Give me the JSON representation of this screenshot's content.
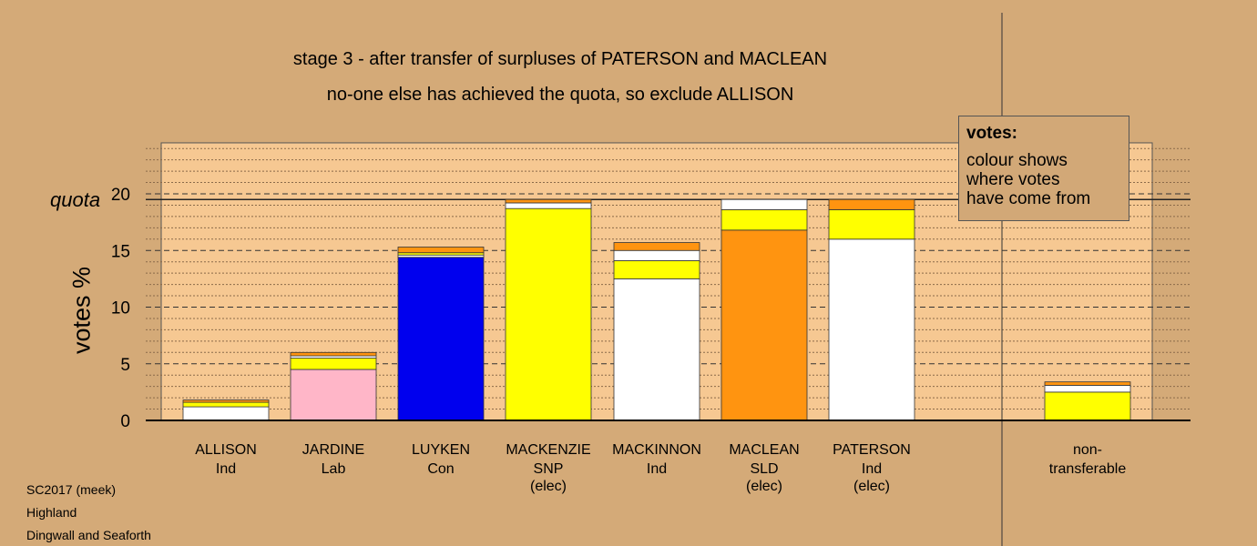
{
  "titles": {
    "line1": "stage 3 - after transfer of surpluses of PATERSON and MACLEAN",
    "line2": "no-one else has achieved the quota, so exclude ALLISON"
  },
  "legend": {
    "title": "votes:",
    "lines": [
      "colour shows",
      "where votes",
      "have come from"
    ]
  },
  "footer": {
    "line1": "SC2017 (meek)",
    "line2": "Highland",
    "line3": "Dingwall and Seaforth"
  },
  "colors": {
    "background": "#d4aa78",
    "plot_background": "#f6c892",
    "Ind": "#ffffff",
    "Lab": "#ffb6c8",
    "Con": "#0000ee",
    "SNP": "#ffff00",
    "SLD": "#ff9410"
  },
  "chart_data": {
    "type": "bar",
    "stacked": true,
    "ylabel": "votes %",
    "quota_label": "quota",
    "quota": 19.5,
    "ylim": [
      0,
      24.5
    ],
    "yticks": [
      0,
      5,
      10,
      15,
      20
    ],
    "grid": true,
    "legend_position": "top-right",
    "categories": [
      {
        "name": "ALLISON",
        "party": "Ind",
        "note": "",
        "segments": [
          {
            "color": "#ffffff",
            "value": 1.2
          },
          {
            "color": "#ffff00",
            "value": 0.4
          },
          {
            "color": "#ff9410",
            "value": 0.2
          }
        ]
      },
      {
        "name": "JARDINE",
        "party": "Lab",
        "note": "",
        "segments": [
          {
            "color": "#ffb6c8",
            "value": 4.5
          },
          {
            "color": "#ffff00",
            "value": 1.0
          },
          {
            "color": "#ffffff",
            "value": 0.2
          },
          {
            "color": "#ff9410",
            "value": 0.3
          }
        ]
      },
      {
        "name": "LUYKEN",
        "party": "Con",
        "note": "",
        "segments": [
          {
            "color": "#0000ee",
            "value": 14.4
          },
          {
            "color": "#ffffff",
            "value": 0.2
          },
          {
            "color": "#ffff00",
            "value": 0.2
          },
          {
            "color": "#ff9410",
            "value": 0.5
          }
        ]
      },
      {
        "name": "MACKENZIE",
        "party": "SNP",
        "note": "(elec)",
        "segments": [
          {
            "color": "#ffff00",
            "value": 18.7
          },
          {
            "color": "#ffffff",
            "value": 0.5
          },
          {
            "color": "#ff9410",
            "value": 0.3
          }
        ]
      },
      {
        "name": "MACKINNON",
        "party": "Ind",
        "note": "",
        "segments": [
          {
            "color": "#ffffff",
            "value": 12.5
          },
          {
            "color": "#ffff00",
            "value": 1.6
          },
          {
            "color": "#ffffff",
            "value": 0.9
          },
          {
            "color": "#ff9410",
            "value": 0.7
          }
        ]
      },
      {
        "name": "MACLEAN",
        "party": "SLD",
        "note": "(elec)",
        "segments": [
          {
            "color": "#ff9410",
            "value": 16.8
          },
          {
            "color": "#ffff00",
            "value": 1.8
          },
          {
            "color": "#ffffff",
            "value": 0.9
          }
        ]
      },
      {
        "name": "PATERSON",
        "party": "Ind",
        "note": "(elec)",
        "segments": [
          {
            "color": "#ffffff",
            "value": 16.0
          },
          {
            "color": "#ffff00",
            "value": 2.6
          },
          {
            "color": "#ff9410",
            "value": 0.9
          }
        ]
      },
      {
        "name": "non-",
        "party": "transferable",
        "note": "",
        "segments": [
          {
            "color": "#ffff00",
            "value": 2.5
          },
          {
            "color": "#ffffff",
            "value": 0.6
          },
          {
            "color": "#ff9410",
            "value": 0.3
          }
        ]
      }
    ]
  }
}
